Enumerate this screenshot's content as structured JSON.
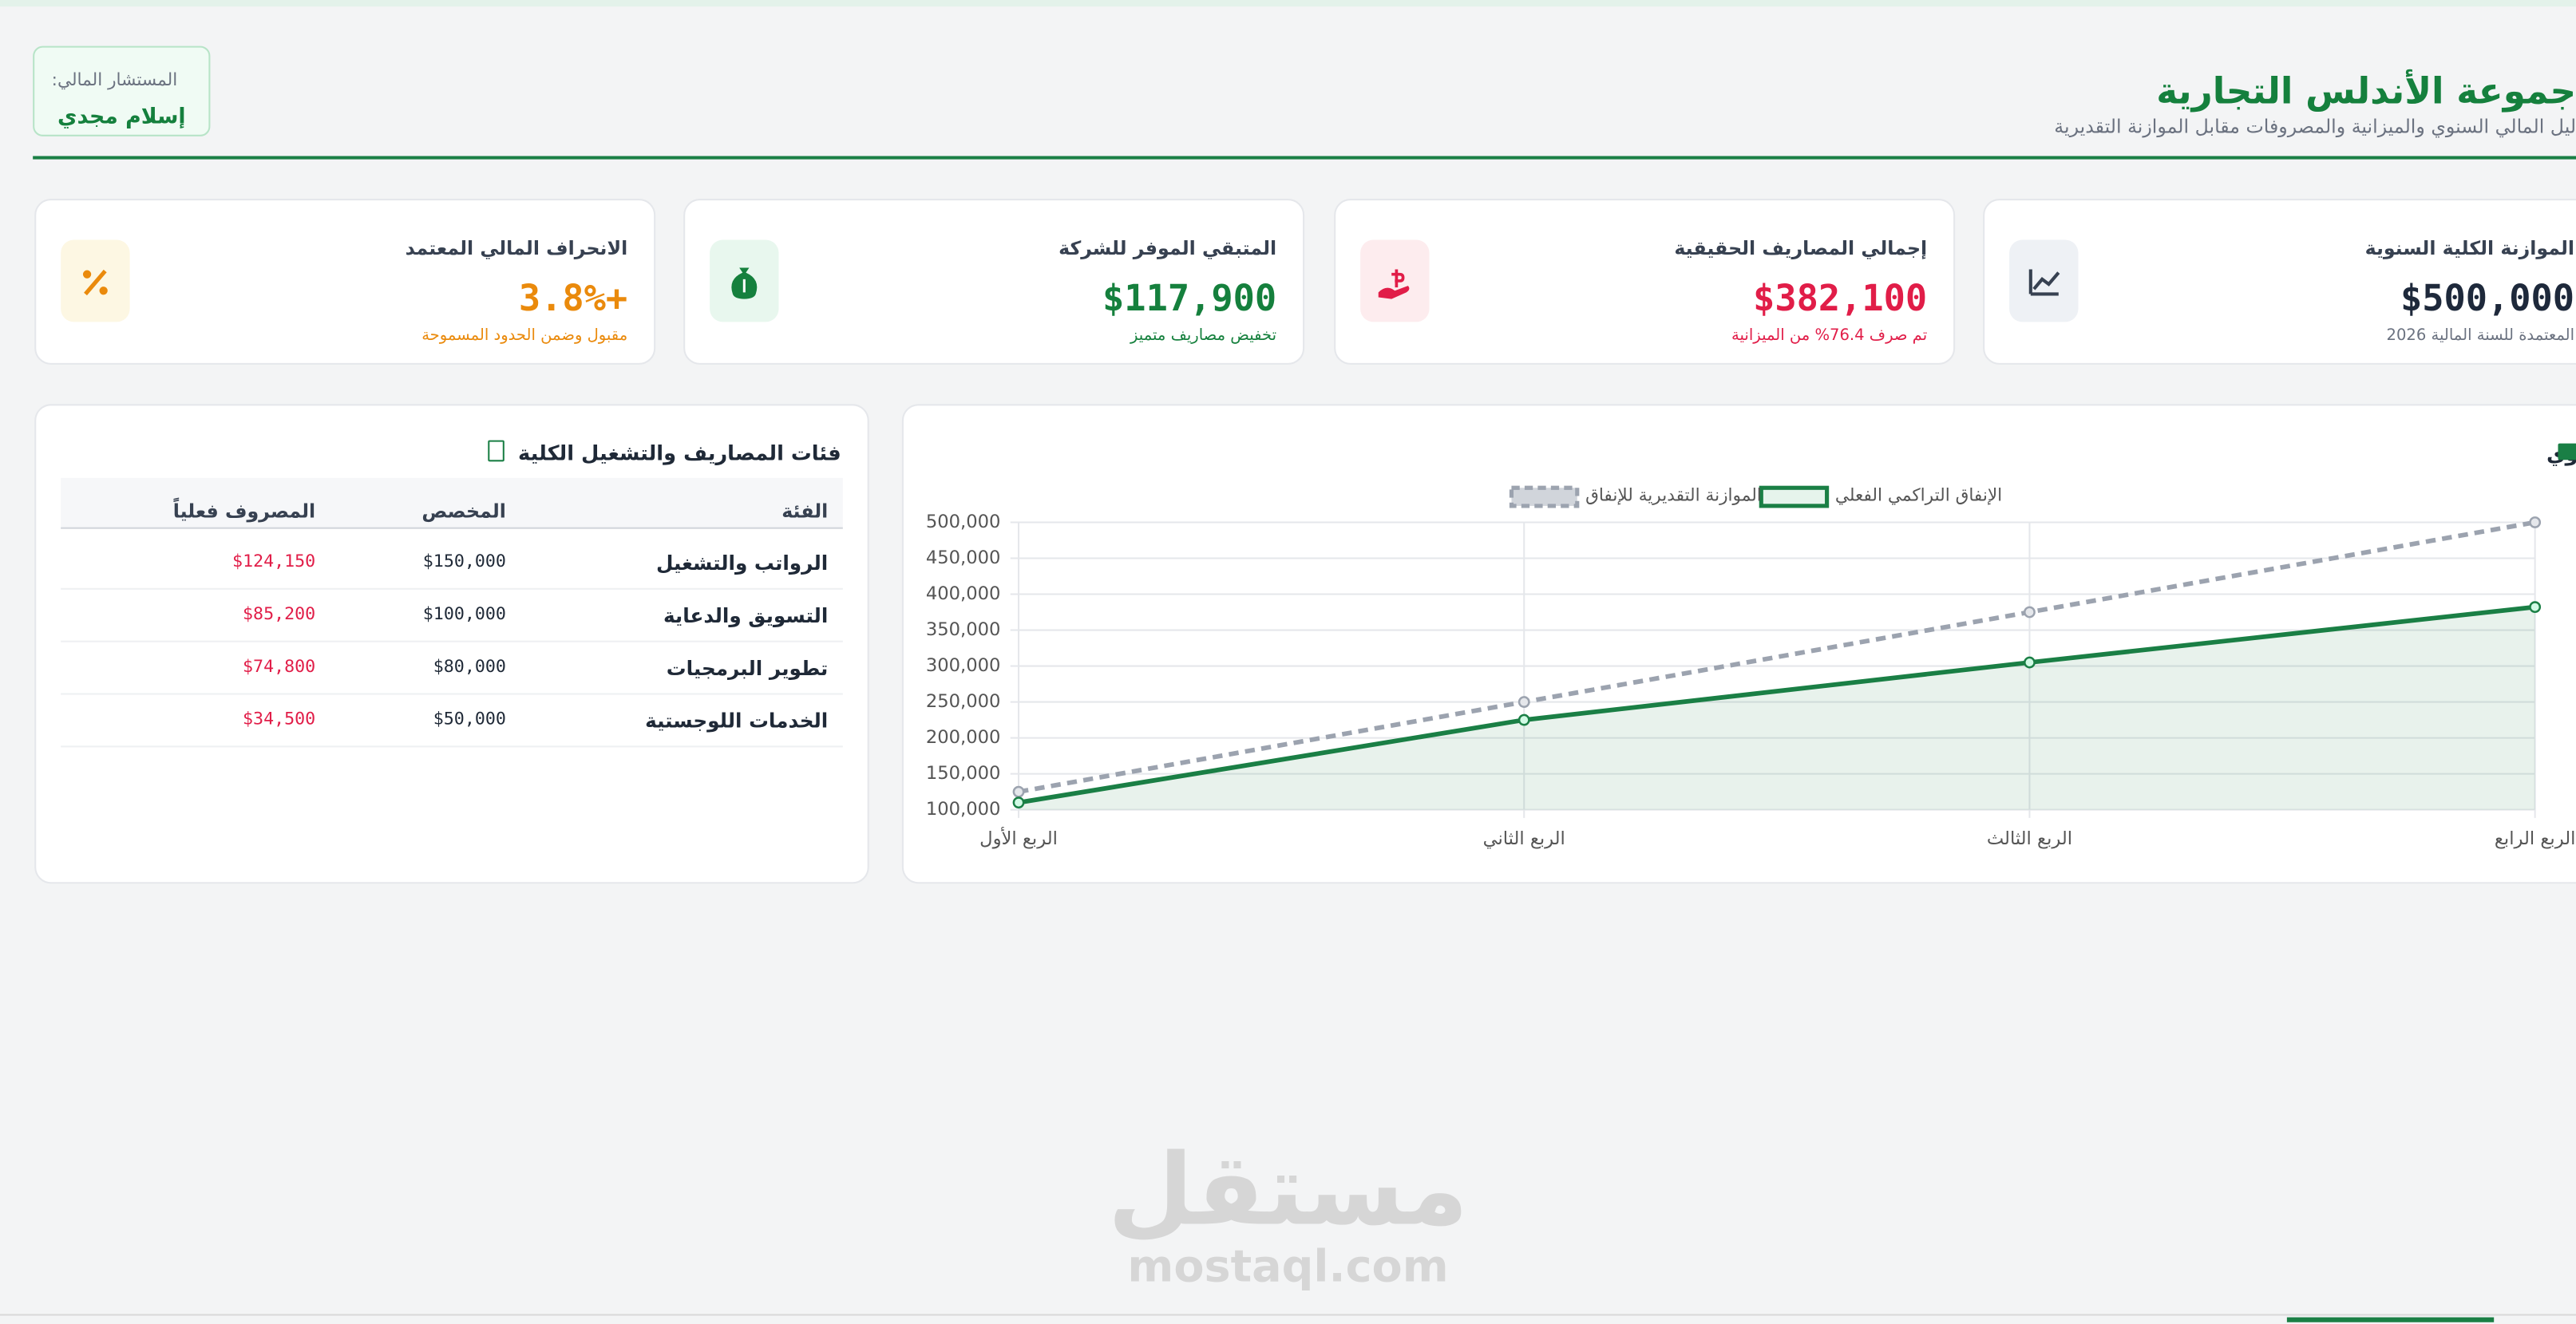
{
  "header": {
    "title": "جموعة الأندلس التجارية",
    "subtitle": "ليل المالي السنوي والميزانية والمصروفات مقابل الموازنة التقديرية",
    "advisor_label": "المستشار المالي:",
    "advisor_name": "إسلام مجدي"
  },
  "cards": [
    {
      "title": "الموازنة الكلية السنوية",
      "value": "$500,000",
      "note": "المعتمدة للسنة المالية 2026",
      "color": "#1e293b"
    },
    {
      "title": "إجمالي المصاريف الحقيقية",
      "value": "$382,100",
      "note": "تم صرف 76.4% من الميزانية",
      "color": "#e11d48"
    },
    {
      "title": "المتبقي الموفر للشركة",
      "value": "$117,900",
      "note": "تخفيض مصاريف متميز",
      "color": "#15803d"
    },
    {
      "title": "الانحراف المالي المعتمد",
      "value": "+3.8%",
      "note": "مقبول وضمن الحدود المسموحة",
      "color": "#ea8a0c"
    }
  ],
  "table": {
    "title": "فئات المصاريف والتشغيل الكلية",
    "columns": [
      "الفئة",
      "المخصص",
      "المصروف فعلياً"
    ],
    "rows": [
      [
        "الرواتب والتشغيل",
        "$150,000",
        "$124,150"
      ],
      [
        "التسويق والدعاية",
        "$100,000",
        "$85,200"
      ],
      [
        "تطوير البرمجيات",
        "$80,000",
        "$74,800"
      ],
      [
        "الخدمات اللوجستية",
        "$50,000",
        "$34,500"
      ]
    ]
  },
  "chart_data": {
    "type": "line",
    "title": "الاتجاه التراكمي للإنفاق والوفر المالي السنوي",
    "categories": [
      "الربع الأول",
      "الربع الثاني",
      "الربع الثالث",
      "الربع الرابع"
    ],
    "series": [
      {
        "name": "الإنفاق التراكمي الفعلي",
        "color": "#1a7f45",
        "values": [
          110000,
          225000,
          305000,
          382100
        ],
        "fill": true
      },
      {
        "name": "الموازنة التقديرية للإنفاق",
        "color": "#9ca3af",
        "values": [
          125000,
          250000,
          375000,
          500000
        ],
        "dashed": true
      }
    ],
    "ylim": [
      100000,
      500000
    ],
    "yticks": [
      {
        "value": 100000,
        "label": "100,000"
      },
      {
        "value": 150000,
        "label": "150,000"
      },
      {
        "value": 200000,
        "label": "200,000"
      },
      {
        "value": 250000,
        "label": "250,000"
      },
      {
        "value": 300000,
        "label": "300,000"
      },
      {
        "value": 350000,
        "label": "350,000"
      },
      {
        "value": 400000,
        "label": "400,000"
      },
      {
        "value": 450000,
        "label": "450,000"
      },
      {
        "value": 500000,
        "label": "500,000"
      }
    ],
    "grid": true
  },
  "watermark": {
    "arabic": "مستقل",
    "latin": "mostaql.com"
  }
}
